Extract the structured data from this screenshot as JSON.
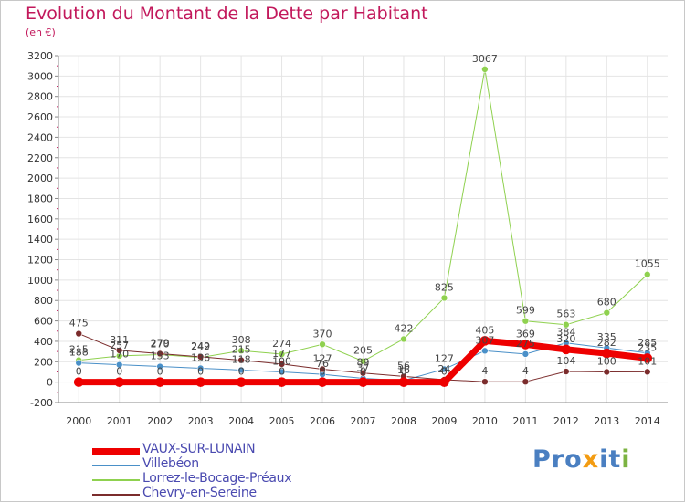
{
  "header": {
    "title": "Evolution du Montant de la Dette par Habitant",
    "subtitle": "(en €)"
  },
  "logo": {
    "text": "Proxiti",
    "colors": {
      "main": "#4a7fc1",
      "accent": "#f39c12",
      "alt": "#7cb342"
    }
  },
  "chart_data": {
    "type": "line",
    "title": "Evolution du Montant de la Dette par Habitant",
    "ylabel": "(en €)",
    "x": [
      "2000",
      "2001",
      "2002",
      "2003",
      "2004",
      "2005",
      "2006",
      "2007",
      "2008",
      "2009",
      "2010",
      "2011",
      "2012",
      "2013",
      "2014"
    ],
    "ylim": [
      -200,
      3200
    ],
    "yticks": [
      -200,
      0,
      200,
      400,
      600,
      800,
      1000,
      1200,
      1400,
      1600,
      1800,
      2000,
      2200,
      2400,
      2600,
      2800,
      3000,
      3200
    ],
    "grid": true,
    "legend_position": "bottom-left",
    "series": [
      {
        "name": "VAUX-SUR-LUNAIN",
        "color": "#ee0000",
        "width": 7,
        "values": [
          0,
          0,
          0,
          0,
          0,
          0,
          0,
          0,
          0,
          0,
          405,
          369,
          320,
          282,
          235
        ],
        "labels": [
          "0",
          "0",
          "0",
          "0",
          "0",
          "0",
          "0",
          "0",
          "0",
          "0",
          "405",
          "369",
          "320",
          "282",
          "235"
        ]
      },
      {
        "name": "Villebéon",
        "color": "#4a90c8",
        "width": 1,
        "values": [
          188,
          170,
          153,
          136,
          118,
          100,
          76,
          37,
          16,
          127,
          307,
          275,
          384,
          335,
          285
        ],
        "labels": [
          "188",
          "170",
          "153",
          "136",
          "118",
          "100",
          "76",
          "37",
          "16",
          "127",
          "307",
          "275",
          "384",
          "335",
          "285"
        ]
      },
      {
        "name": "Lorrez-le-Bocage-Préaux",
        "color": "#8fd14f",
        "width": 1,
        "values": [
          215,
          257,
          270,
          242,
          308,
          274,
          370,
          205,
          422,
          825,
          3067,
          599,
          563,
          680,
          1055
        ],
        "labels": [
          "215",
          "257",
          "270",
          "242",
          "308",
          "274",
          "370",
          "205",
          "422",
          "825",
          "3067",
          "599",
          "563",
          "680",
          "1055"
        ]
      },
      {
        "name": "Chevry-en-Sereine",
        "color": "#7b2c2c",
        "width": 1,
        "values": [
          475,
          311,
          279,
          249,
          215,
          177,
          127,
          89,
          56,
          24,
          4,
          4,
          104,
          100,
          101
        ],
        "labels": [
          "475",
          "311",
          "279",
          "249",
          "215",
          "177",
          "127",
          "89",
          "56",
          "24",
          "4",
          "4",
          "104",
          "100",
          "101"
        ]
      }
    ]
  }
}
